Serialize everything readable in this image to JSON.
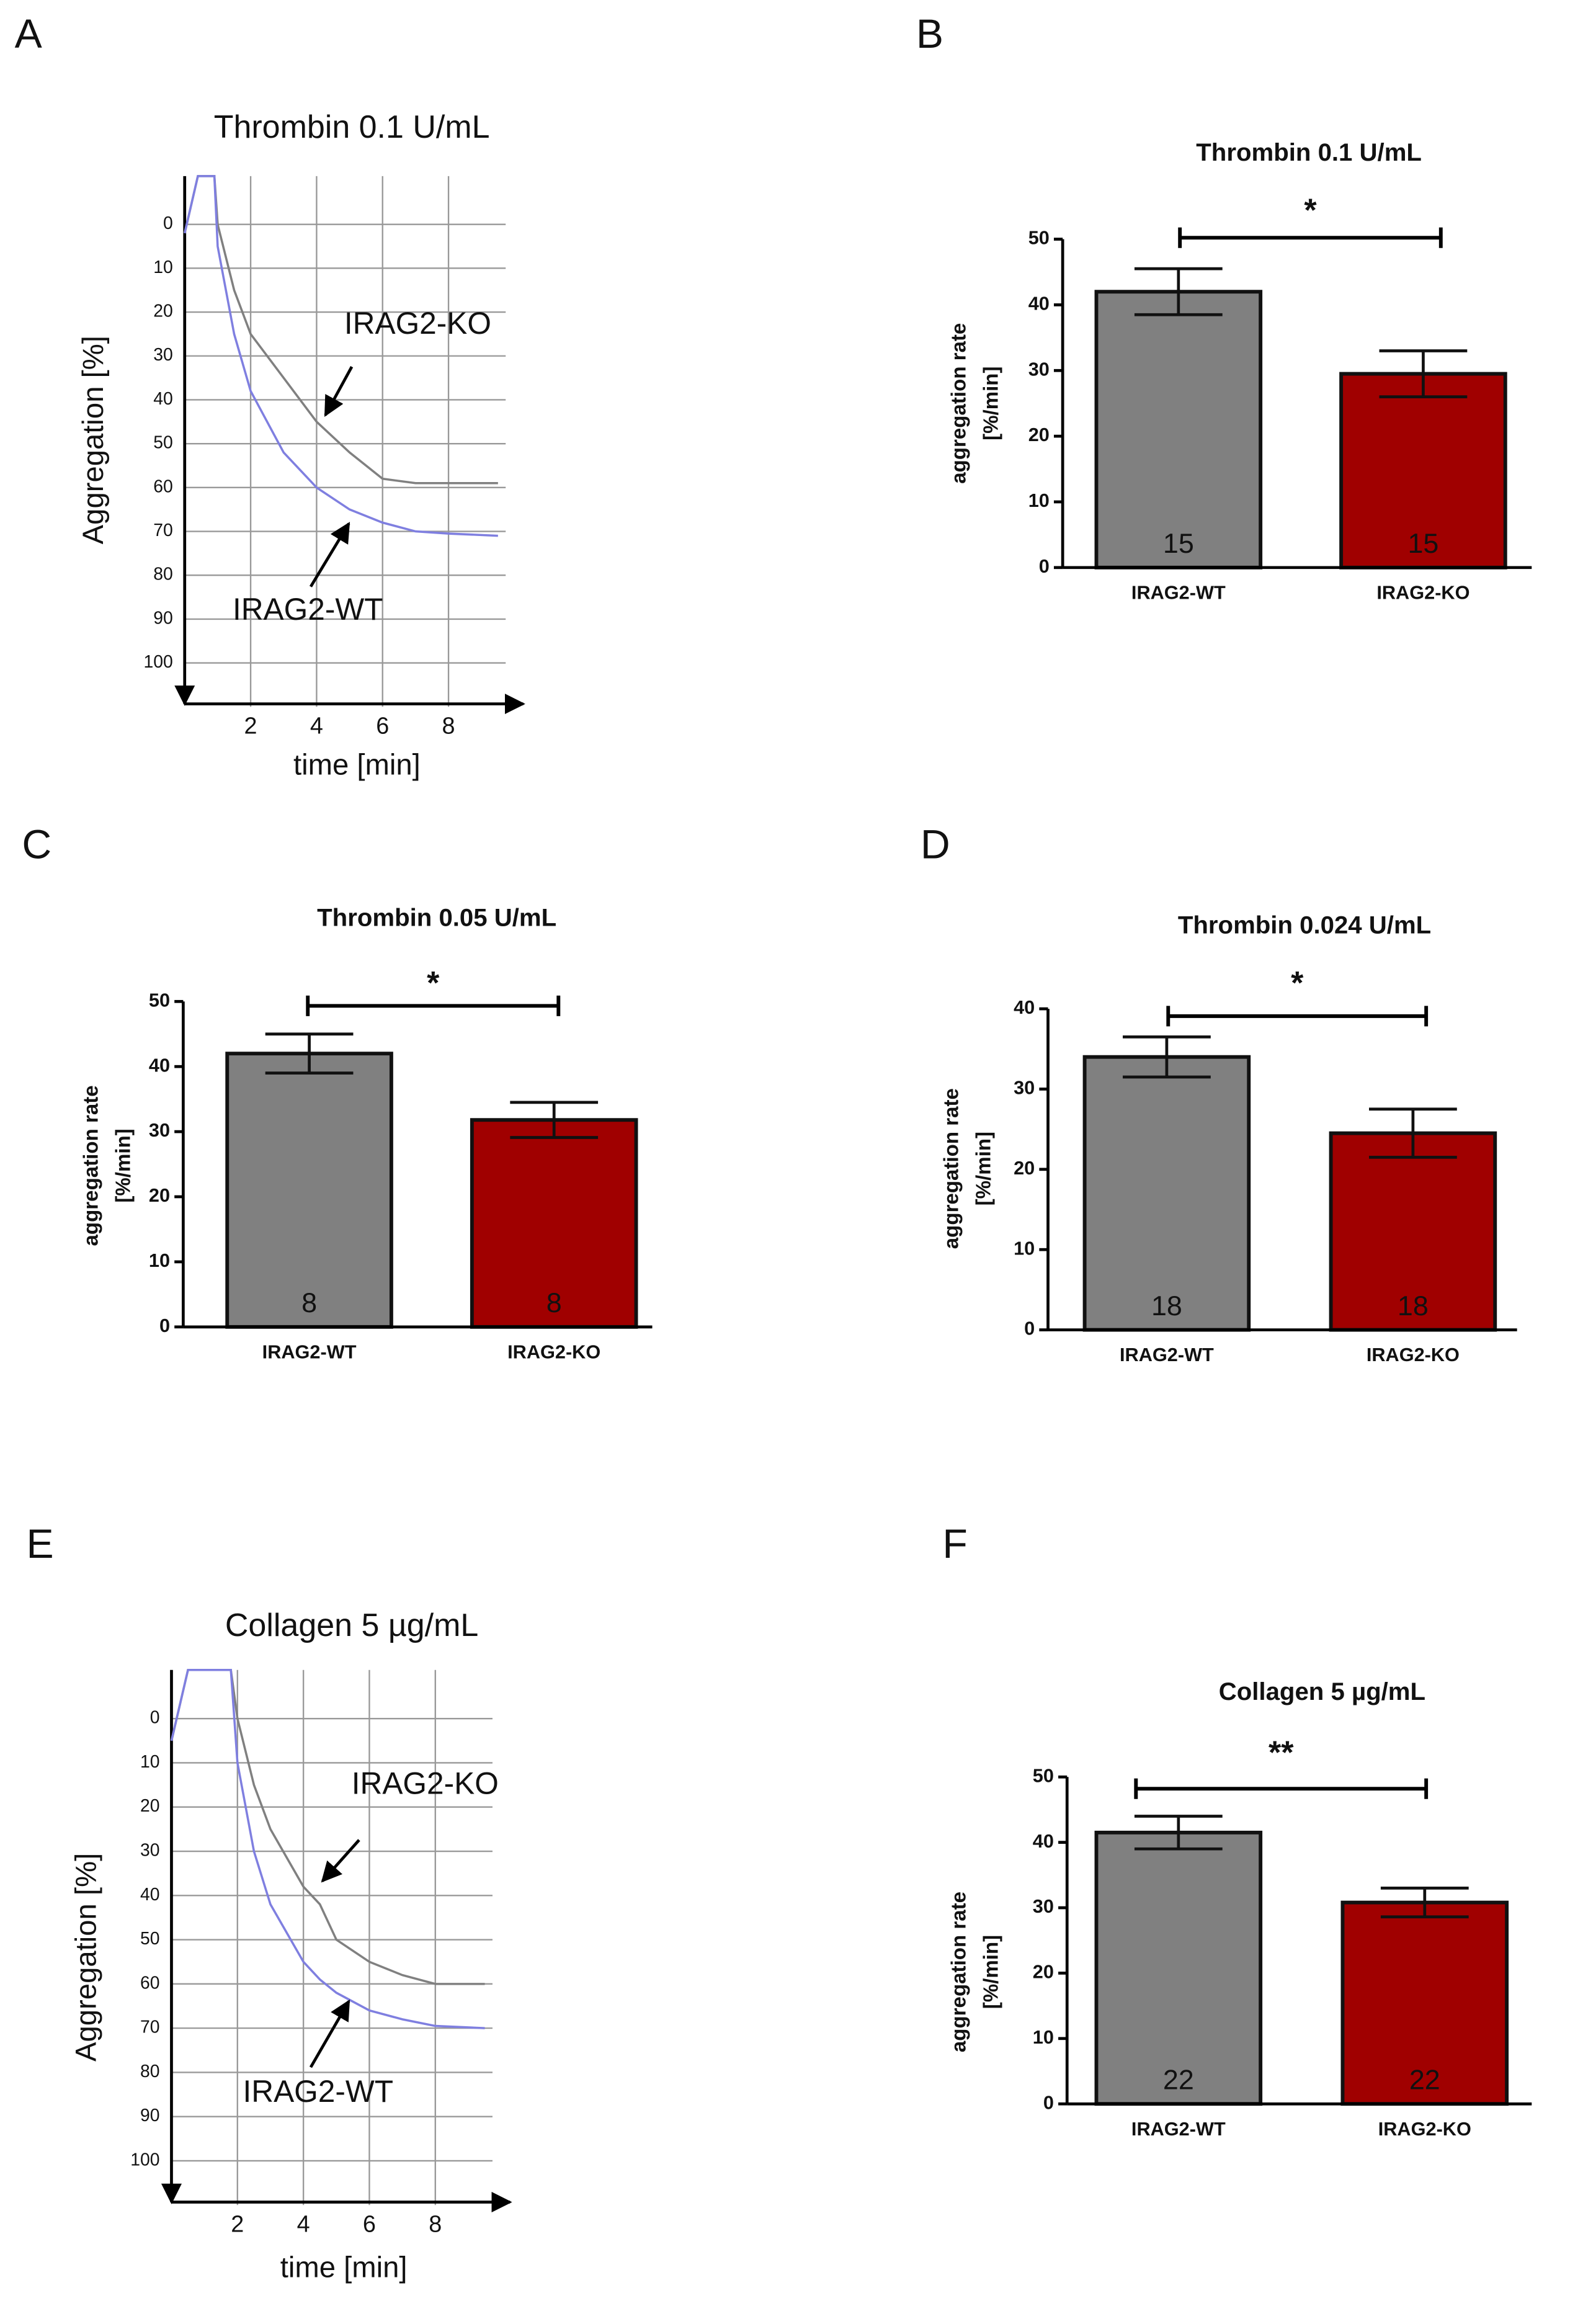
{
  "chart_data": [
    {
      "panel": "A",
      "type": "line",
      "title": "Thrombin 0.1 U/mL",
      "xlabel": "time [min]",
      "ylabel": "Aggregation [%]",
      "x": [
        0,
        0.4,
        0.9,
        1,
        1.5,
        2,
        3,
        4,
        5,
        6,
        7,
        8,
        9.5
      ],
      "series": [
        {
          "name": "IRAG2-KO",
          "color": "#808080",
          "values": [
            2,
            -11,
            -11,
            0,
            15,
            25,
            35,
            45,
            52,
            58,
            59,
            59,
            59
          ]
        },
        {
          "name": "IRAG2-WT",
          "color": "#7f7fe0",
          "values": [
            2,
            -11,
            -11,
            5,
            25,
            38,
            52,
            60,
            65,
            68,
            70,
            70.5,
            71
          ]
        }
      ],
      "xlim": [
        0,
        10
      ],
      "xticks": [
        2,
        4,
        6,
        8
      ],
      "ylim": [
        -11,
        110
      ],
      "yticks": [
        0,
        10,
        20,
        30,
        40,
        50,
        60,
        70,
        80,
        90,
        100
      ],
      "y_reversed": true,
      "grid": true
    },
    {
      "panel": "B",
      "type": "bar",
      "title": "Thrombin 0.1 U/mL",
      "ylabel": [
        "aggregation rate",
        "[%/min]"
      ],
      "categories": [
        "IRAG2-WT",
        "IRAG2-KO"
      ],
      "values": [
        42,
        29.5
      ],
      "errors": [
        3.5,
        3.5
      ],
      "n": [
        15,
        15
      ],
      "colors": [
        "#808080",
        "#a00000"
      ],
      "ylim": [
        0,
        50
      ],
      "yticks": [
        0,
        10,
        20,
        30,
        40,
        50
      ],
      "significance": "*"
    },
    {
      "panel": "C",
      "type": "bar",
      "title": "Thrombin 0.05 U/mL",
      "ylabel": [
        "aggregation rate",
        "[%/min]"
      ],
      "categories": [
        "IRAG2-WT",
        "IRAG2-KO"
      ],
      "values": [
        42,
        31.8
      ],
      "errors": [
        3,
        2.7
      ],
      "n": [
        8,
        8
      ],
      "colors": [
        "#808080",
        "#a00000"
      ],
      "ylim": [
        0,
        50
      ],
      "yticks": [
        0,
        10,
        20,
        30,
        40,
        50
      ],
      "significance": "*"
    },
    {
      "panel": "D",
      "type": "bar",
      "title": "Thrombin 0.024 U/mL",
      "ylabel": [
        "aggregation rate",
        "[%/min]"
      ],
      "categories": [
        "IRAG2-WT",
        "IRAG2-KO"
      ],
      "values": [
        34,
        24.5
      ],
      "errors": [
        2.5,
        3
      ],
      "n": [
        18,
        18
      ],
      "colors": [
        "#808080",
        "#a00000"
      ],
      "ylim": [
        0,
        40
      ],
      "yticks": [
        0,
        10,
        20,
        30,
        40
      ],
      "significance": "*"
    },
    {
      "panel": "E",
      "type": "line",
      "title": "Collagen 5 µg/mL",
      "xlabel": "time [min]",
      "ylabel": "Aggregation [%]",
      "x": [
        0,
        0.5,
        1.8,
        2,
        2.5,
        3,
        4,
        4.5,
        5,
        6,
        7,
        8,
        9.5
      ],
      "series": [
        {
          "name": "IRAG2-KO",
          "color": "#808080",
          "values": [
            5,
            -11,
            -11,
            0,
            15,
            25,
            38,
            42,
            50,
            55,
            58,
            60,
            60
          ]
        },
        {
          "name": "IRAG2-WT",
          "color": "#7f7fe0",
          "values": [
            5,
            -11,
            -11,
            10,
            30,
            42,
            55,
            59,
            62,
            66,
            68,
            69.5,
            70
          ]
        }
      ],
      "xlim": [
        0,
        10
      ],
      "xticks": [
        2,
        4,
        6,
        8
      ],
      "ylim": [
        -11,
        110
      ],
      "yticks": [
        0,
        10,
        20,
        30,
        40,
        50,
        60,
        70,
        80,
        90,
        100
      ],
      "y_reversed": true,
      "grid": true
    },
    {
      "panel": "F",
      "type": "bar",
      "title": "Collagen 5 µg/mL",
      "ylabel": [
        "aggregation rate",
        "[%/min]"
      ],
      "categories": [
        "IRAG2-WT",
        "IRAG2-KO"
      ],
      "values": [
        41.5,
        30.8
      ],
      "errors": [
        2.5,
        2.2
      ],
      "n": [
        22,
        22
      ],
      "colors": [
        "#808080",
        "#a00000"
      ],
      "ylim": [
        0,
        50
      ],
      "yticks": [
        0,
        10,
        20,
        30,
        40,
        50
      ],
      "significance": "**"
    }
  ]
}
